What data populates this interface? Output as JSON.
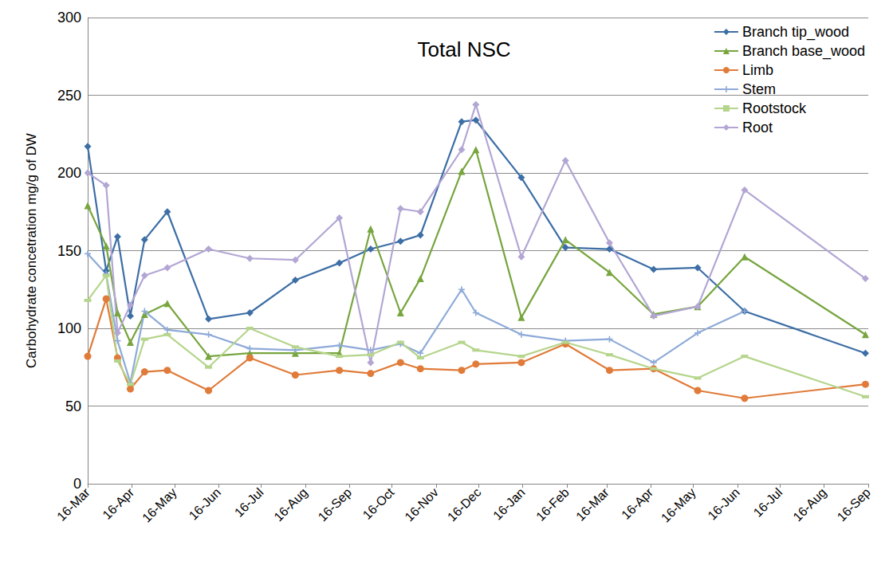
{
  "chart_data": {
    "type": "line",
    "title": "Total NSC",
    "y_label": "Carbohydrate concetration mg/g of DW",
    "x": [
      0,
      13,
      21,
      30,
      40,
      56,
      85,
      114,
      146,
      177,
      199,
      220,
      234,
      263,
      273,
      305,
      336,
      367,
      398,
      429,
      462,
      547
    ],
    "xlim": [
      0,
      549
    ],
    "xticks": [
      {
        "value": 0,
        "label": "16-Mar"
      },
      {
        "value": 31,
        "label": "16-Apr"
      },
      {
        "value": 61,
        "label": "16-May"
      },
      {
        "value": 92,
        "label": "16-Jun"
      },
      {
        "value": 122,
        "label": "16-Jul"
      },
      {
        "value": 153,
        "label": "16-Aug"
      },
      {
        "value": 184,
        "label": "16-Sep"
      },
      {
        "value": 214,
        "label": "16-Oct"
      },
      {
        "value": 245,
        "label": "16-Nov"
      },
      {
        "value": 275,
        "label": "16-Dec"
      },
      {
        "value": 306,
        "label": "16-Jan"
      },
      {
        "value": 337,
        "label": "16-Feb"
      },
      {
        "value": 365,
        "label": "16-Mar"
      },
      {
        "value": 396,
        "label": "16-Apr"
      },
      {
        "value": 426,
        "label": "16-May"
      },
      {
        "value": 457,
        "label": "16-Jun"
      },
      {
        "value": 487,
        "label": "16-Jul"
      },
      {
        "value": 518,
        "label": "16-Aug"
      },
      {
        "value": 549,
        "label": "16-Sep"
      }
    ],
    "ylim": [
      0,
      300
    ],
    "yticks": [
      0,
      50,
      100,
      150,
      200,
      250,
      300
    ],
    "grid": true,
    "legend": "upper right",
    "series": [
      {
        "name": "Branch tip_wood",
        "color": "#3d6ea5",
        "marker": "diamond",
        "line_style": "solid",
        "values": [
          217,
          137,
          159,
          108,
          157,
          175,
          106,
          110,
          131,
          142,
          151,
          156,
          160,
          233,
          234,
          197,
          152,
          151,
          138,
          139,
          111,
          84
        ]
      },
      {
        "name": "Branch base_wood",
        "color": "#77a53e",
        "marker": "triangle",
        "line_style": "solid",
        "values": [
          179,
          153,
          110,
          91,
          109,
          116,
          82,
          84,
          84,
          84,
          164,
          110,
          132,
          201,
          215,
          107,
          157,
          136,
          109,
          114,
          146,
          96
        ]
      },
      {
        "name": "Limb",
        "color": "#e07b39",
        "marker": "circle",
        "line_style": "solid",
        "values": [
          82,
          119,
          81,
          61,
          72,
          73,
          60,
          81,
          70,
          73,
          71,
          78,
          74,
          73,
          77,
          78,
          90,
          73,
          74,
          60,
          55,
          64
        ]
      },
      {
        "name": "Stem",
        "color": "#8eaad8",
        "marker": "plus",
        "line_style": "solid",
        "values": [
          148,
          135,
          92,
          65,
          111,
          99,
          96,
          87,
          86,
          89,
          86,
          90,
          84,
          125,
          110,
          96,
          92,
          93,
          78,
          97,
          111,
          null
        ]
      },
      {
        "name": "Rootstock",
        "color": "#b5d58c",
        "marker": "dash",
        "line_style": "solid",
        "values": [
          118,
          134,
          79,
          64,
          93,
          96,
          75,
          100,
          88,
          82,
          83,
          91,
          81,
          91,
          86,
          82,
          91,
          83,
          74,
          68,
          82,
          56
        ]
      },
      {
        "name": "Root",
        "color": "#b3a6d4",
        "marker": "diamond",
        "line_style": "solid",
        "values": [
          200,
          192,
          97,
          115,
          134,
          139,
          151,
          145,
          144,
          171,
          78,
          177,
          175,
          215,
          244,
          146,
          208,
          155,
          108,
          114,
          189,
          132
        ]
      }
    ]
  }
}
